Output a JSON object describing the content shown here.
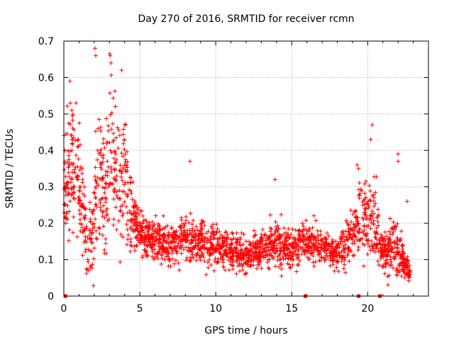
{
  "chart_data": {
    "type": "scatter",
    "title": "Day 270 of 2016, SRMTID for receiver rcmn",
    "xlabel": "GPS time / hours",
    "ylabel": "SRMTID / TECUs",
    "xlim": [
      0,
      24
    ],
    "ylim": [
      0,
      0.7
    ],
    "xticks": [
      0,
      5,
      10,
      15,
      20
    ],
    "yticks": [
      0,
      0.1,
      0.2,
      0.3,
      0.4,
      0.5,
      0.6,
      0.7
    ],
    "grid": true,
    "marker": "plus",
    "color": "#ff0000",
    "envelope": [
      {
        "x": 0.0,
        "median": 0.3,
        "spread": 0.12
      },
      {
        "x": 0.5,
        "median": 0.38,
        "spread": 0.17
      },
      {
        "x": 1.0,
        "median": 0.3,
        "spread": 0.14
      },
      {
        "x": 1.5,
        "median": 0.14,
        "spread": 0.08
      },
      {
        "x": 2.0,
        "median": 0.18,
        "spread": 0.12
      },
      {
        "x": 2.3,
        "median": 0.35,
        "spread": 0.22
      },
      {
        "x": 2.7,
        "median": 0.28,
        "spread": 0.15
      },
      {
        "x": 3.1,
        "median": 0.42,
        "spread": 0.2
      },
      {
        "x": 3.5,
        "median": 0.32,
        "spread": 0.17
      },
      {
        "x": 4.0,
        "median": 0.33,
        "spread": 0.16
      },
      {
        "x": 4.5,
        "median": 0.22,
        "spread": 0.08
      },
      {
        "x": 5.0,
        "median": 0.18,
        "spread": 0.05
      },
      {
        "x": 6.0,
        "median": 0.15,
        "spread": 0.045
      },
      {
        "x": 7.0,
        "median": 0.14,
        "spread": 0.05
      },
      {
        "x": 7.8,
        "median": 0.16,
        "spread": 0.06
      },
      {
        "x": 9.0,
        "median": 0.15,
        "spread": 0.05
      },
      {
        "x": 10.0,
        "median": 0.14,
        "spread": 0.05
      },
      {
        "x": 11.0,
        "median": 0.12,
        "spread": 0.045
      },
      {
        "x": 12.0,
        "median": 0.11,
        "spread": 0.04
      },
      {
        "x": 13.0,
        "median": 0.13,
        "spread": 0.045
      },
      {
        "x": 14.0,
        "median": 0.15,
        "spread": 0.06
      },
      {
        "x": 15.0,
        "median": 0.13,
        "spread": 0.045
      },
      {
        "x": 16.0,
        "median": 0.15,
        "spread": 0.045
      },
      {
        "x": 17.0,
        "median": 0.14,
        "spread": 0.045
      },
      {
        "x": 18.0,
        "median": 0.12,
        "spread": 0.04
      },
      {
        "x": 19.0,
        "median": 0.16,
        "spread": 0.07
      },
      {
        "x": 19.5,
        "median": 0.22,
        "spread": 0.09
      },
      {
        "x": 20.0,
        "median": 0.22,
        "spread": 0.1
      },
      {
        "x": 20.5,
        "median": 0.2,
        "spread": 0.09
      },
      {
        "x": 21.0,
        "median": 0.12,
        "spread": 0.04
      },
      {
        "x": 21.7,
        "median": 0.14,
        "spread": 0.08
      },
      {
        "x": 22.3,
        "median": 0.1,
        "spread": 0.04
      },
      {
        "x": 22.8,
        "median": 0.06,
        "spread": 0.025
      }
    ],
    "spikes": [
      {
        "x": 0.4,
        "y": 0.59
      },
      {
        "x": 0.8,
        "y": 0.53
      },
      {
        "x": 2.05,
        "y": 0.68
      },
      {
        "x": 2.1,
        "y": 0.66
      },
      {
        "x": 3.05,
        "y": 0.66
      },
      {
        "x": 3.1,
        "y": 0.64
      },
      {
        "x": 3.8,
        "y": 0.62
      },
      {
        "x": 4.0,
        "y": 0.47
      },
      {
        "x": 8.3,
        "y": 0.37
      },
      {
        "x": 13.9,
        "y": 0.32
      },
      {
        "x": 19.3,
        "y": 0.36
      },
      {
        "x": 19.4,
        "y": 0.35
      },
      {
        "x": 20.3,
        "y": 0.47
      },
      {
        "x": 20.2,
        "y": 0.43
      },
      {
        "x": 22.0,
        "y": 0.39
      },
      {
        "x": 22.0,
        "y": 0.37
      },
      {
        "x": 22.6,
        "y": 0.26
      }
    ],
    "baseline_markers": [
      0.1,
      15.9,
      19.4,
      20.8
    ],
    "n_points": 2300
  }
}
